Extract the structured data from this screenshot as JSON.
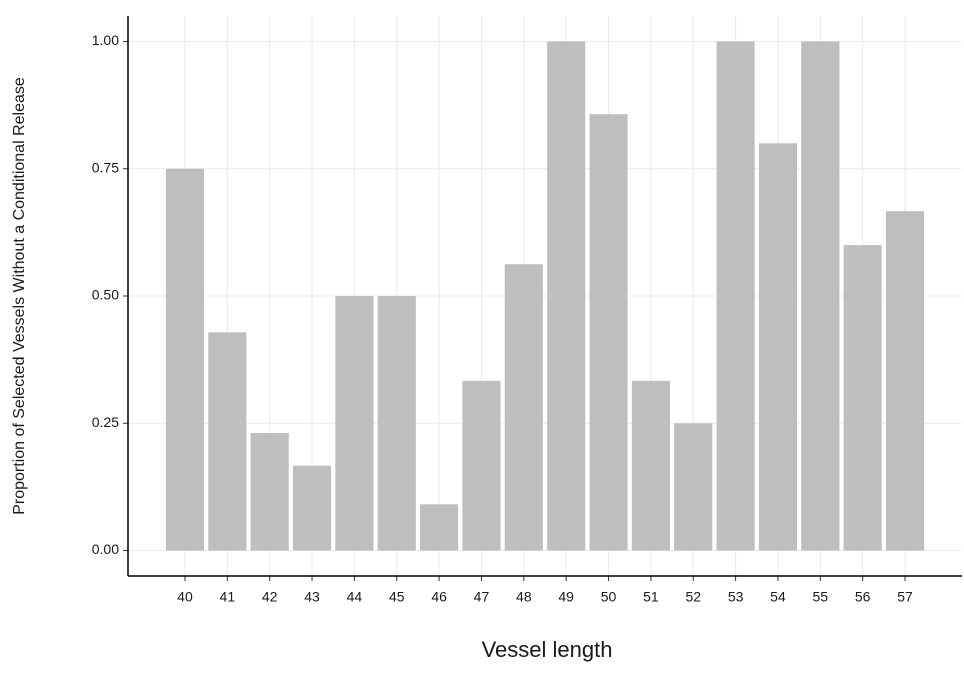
{
  "chart_data": {
    "type": "bar",
    "xlabel": "Vessel length",
    "ylabel": "Proportion of Selected Vessels Without a Conditional Release",
    "categories": [
      "40",
      "41",
      "42",
      "43",
      "44",
      "45",
      "46",
      "47",
      "48",
      "49",
      "50",
      "51",
      "52",
      "53",
      "54",
      "55",
      "56",
      "57"
    ],
    "values": [
      0.75,
      0.4286,
      0.2308,
      0.1667,
      0.5,
      0.5,
      0.0909,
      0.3333,
      0.5625,
      1,
      0.8571,
      0.3333,
      0.25,
      1,
      0.8,
      1,
      0.6,
      0.6667
    ],
    "color": "#bebebe",
    "ylim": [
      -0.05,
      1.05
    ],
    "yticks": [
      {
        "value": 0,
        "label": "0.00"
      },
      {
        "value": 0.25,
        "label": "0.25"
      },
      {
        "value": 0.5,
        "label": "0.50"
      },
      {
        "value": 0.75,
        "label": "0.75"
      },
      {
        "value": 1,
        "label": "1.00"
      }
    ],
    "grid": true
  }
}
